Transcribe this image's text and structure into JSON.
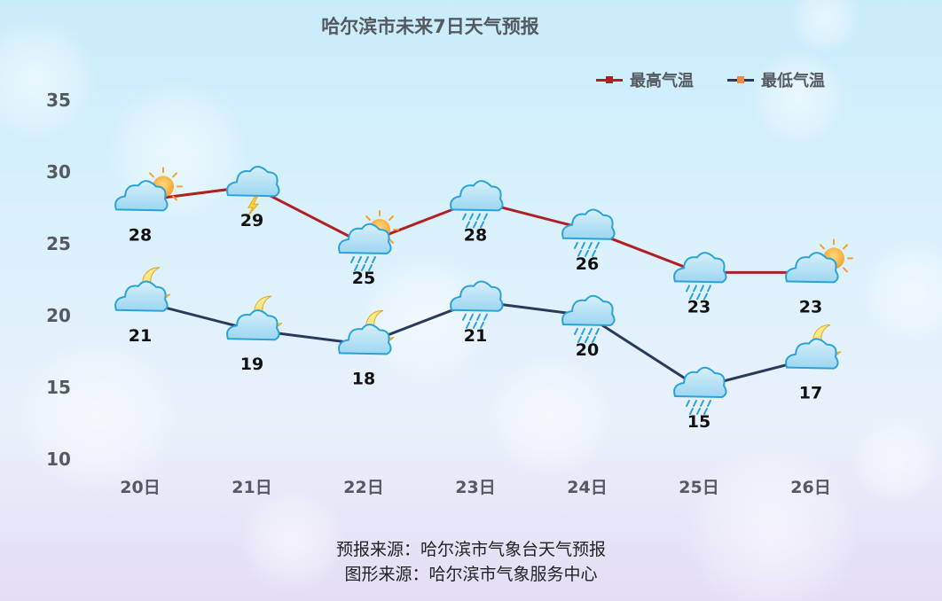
{
  "title": "哈尔滨市未来7日天气预报",
  "legend": [
    {
      "label": "最高气温",
      "color": "#b01f24",
      "marker": "#b01f24"
    },
    {
      "label": "最低气温",
      "color": "#2a3a5c",
      "marker": "#ee8a3e"
    }
  ],
  "footer": {
    "line1": "预报来源：哈尔滨市气象台天气预报",
    "line2": "图形来源：哈尔滨市气象服务中心"
  },
  "chart_data": {
    "type": "line",
    "title": "哈尔滨市未来7日天气预报",
    "categories": [
      "20日",
      "21日",
      "22日",
      "23日",
      "24日",
      "25日",
      "26日"
    ],
    "ylim": [
      10,
      35
    ],
    "yticks": [
      10,
      15,
      20,
      25,
      30,
      35
    ],
    "grid": false,
    "legend_position": "top-right",
    "series": [
      {
        "name": "最高气温",
        "color": "#b01f24",
        "values": [
          28,
          29,
          25,
          28,
          26,
          23,
          23
        ],
        "icons": [
          "partly-sunny-icon",
          "thunder-cloud-icon",
          "sun-cloud-rain-icon",
          "rain-cloud-icon",
          "rain-cloud-icon",
          "rain-cloud-icon",
          "partly-sunny-icon"
        ]
      },
      {
        "name": "最低气温",
        "color": "#2a3a5c",
        "values": [
          21,
          19,
          18,
          21,
          20,
          15,
          17
        ],
        "icons": [
          "moon-cloud-icon",
          "moon-cloud-icon",
          "moon-cloud-icon",
          "rain-cloud-icon",
          "rain-cloud-icon",
          "rain-cloud-icon",
          "moon-cloud-icon"
        ]
      }
    ]
  }
}
